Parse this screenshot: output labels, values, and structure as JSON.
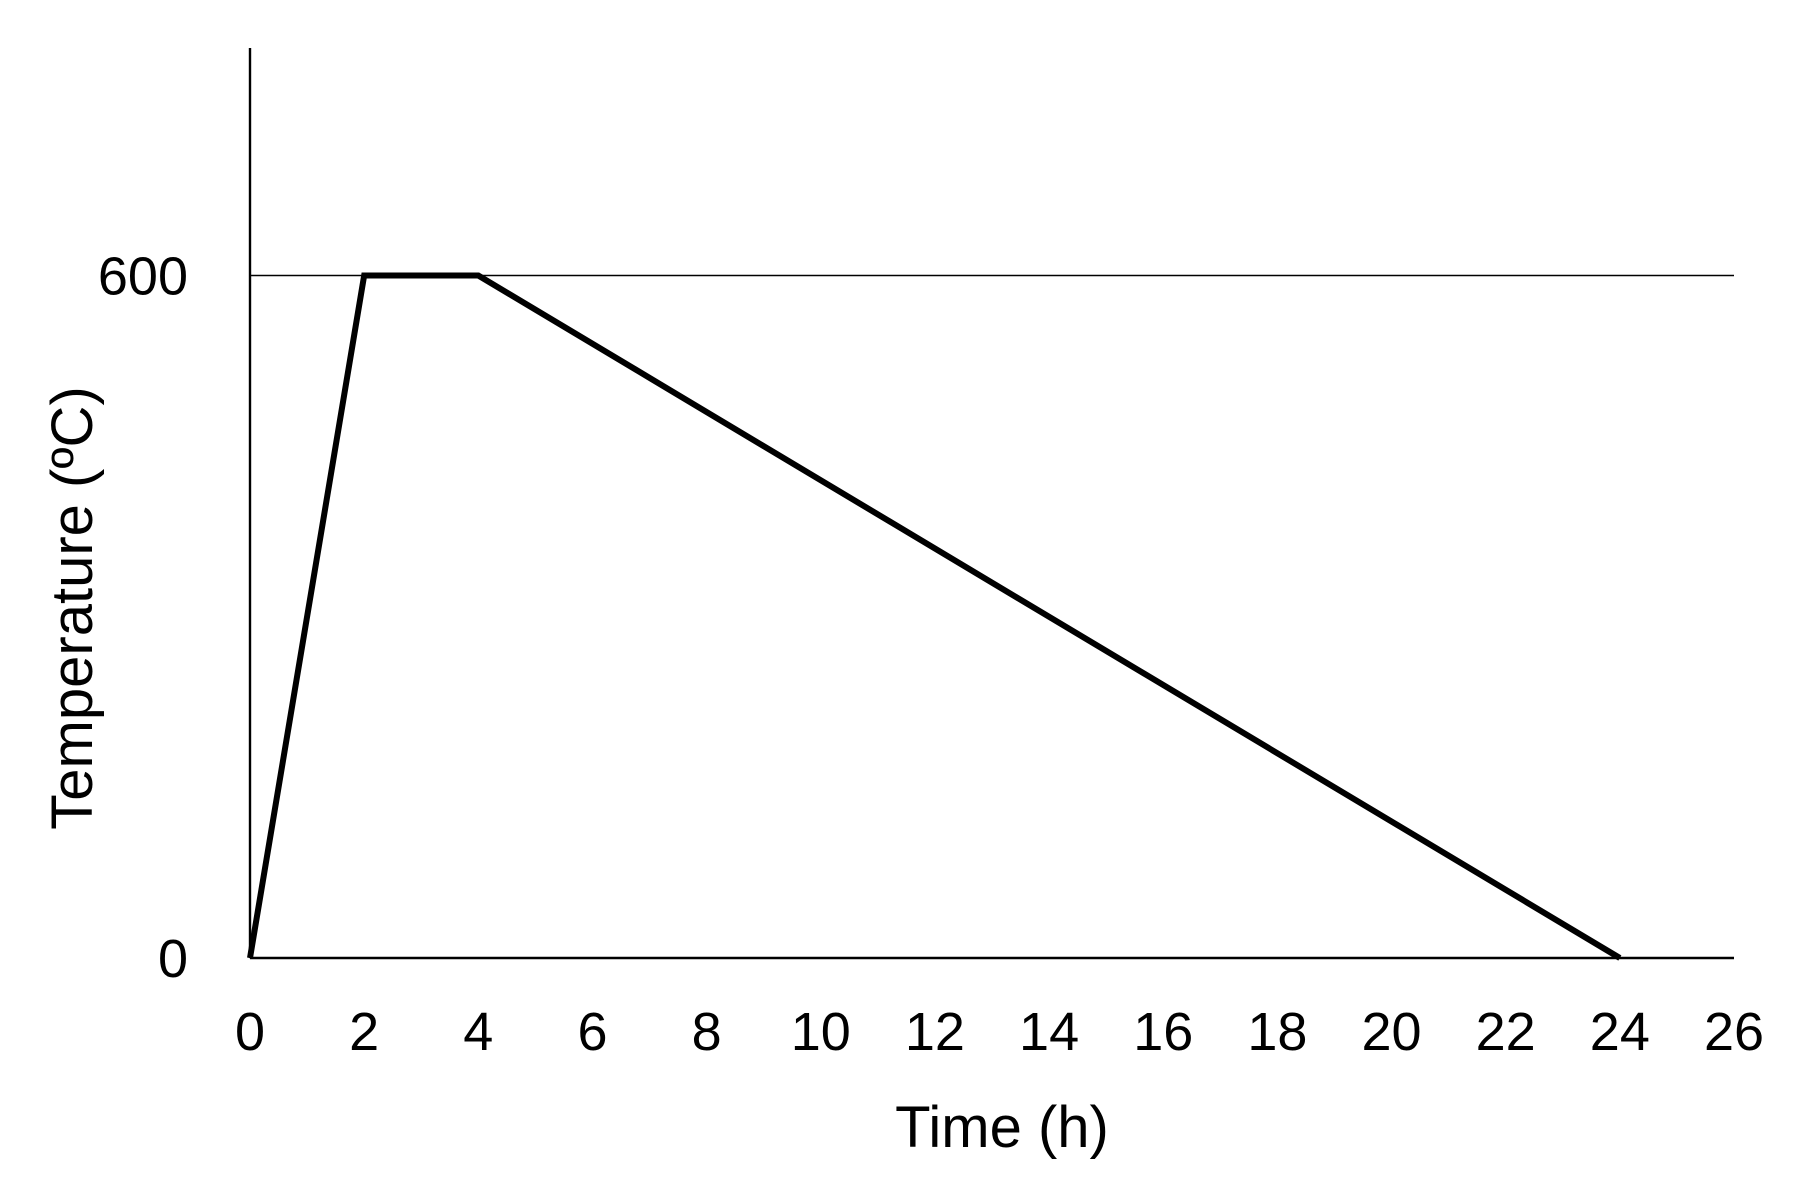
{
  "chart_data": {
    "type": "line",
    "title": "",
    "xlabel": "Time (h)",
    "ylabel": "Temperature (ºC)",
    "xlim": [
      0,
      26
    ],
    "ylim": [
      0,
      800
    ],
    "x_ticks": [
      0,
      2,
      4,
      6,
      8,
      10,
      12,
      14,
      16,
      18,
      20,
      22,
      24,
      26
    ],
    "x_tick_labels": [
      "0",
      "2",
      "4",
      "6",
      "8",
      "10",
      "12",
      "14",
      "16",
      "18",
      "20",
      "22",
      "24",
      "26"
    ],
    "y_ticks": [
      0,
      600
    ],
    "y_tick_labels": [
      "0",
      "600"
    ],
    "reference_lines": [
      {
        "orientation": "horizontal",
        "y": 600
      }
    ],
    "grid": false,
    "legend": "none",
    "series": [
      {
        "x": [
          0,
          2,
          4,
          24
        ],
        "y": [
          0,
          600,
          600,
          0
        ],
        "color": "#000000"
      }
    ]
  }
}
